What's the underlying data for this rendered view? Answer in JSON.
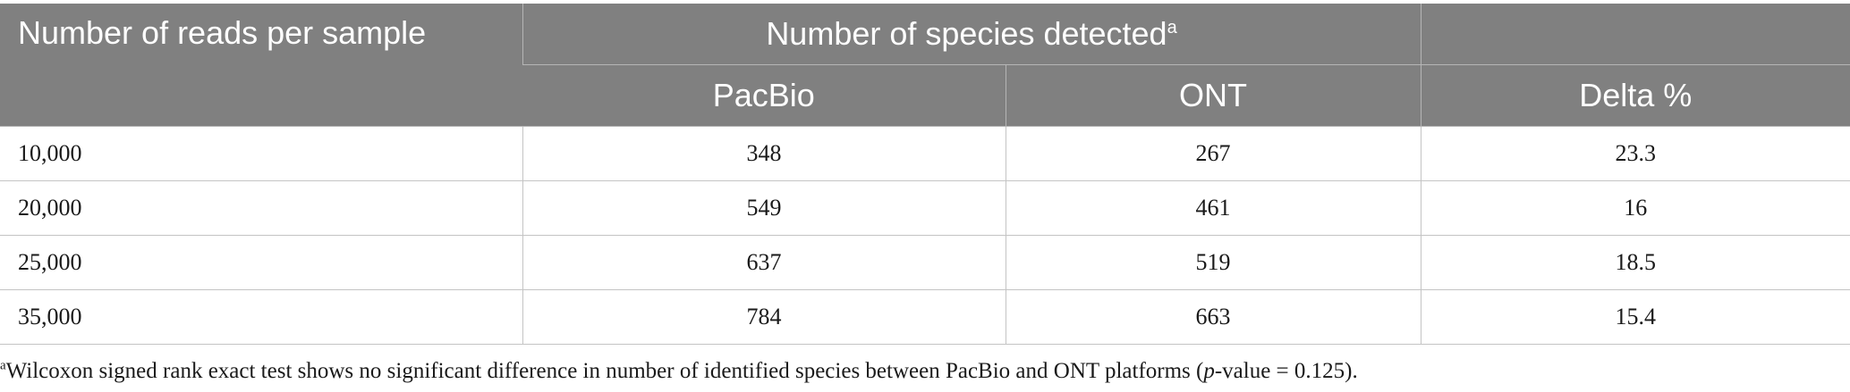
{
  "table": {
    "header": {
      "row_label": "Number of reads per sample",
      "group_label": "Number of species detected",
      "group_footnote_marker": "a",
      "columns": [
        "PacBio",
        "ONT",
        "Delta %"
      ]
    },
    "rows": [
      {
        "reads": "10,000",
        "pacbio": "348",
        "ont": "267",
        "delta": "23.3"
      },
      {
        "reads": "20,000",
        "pacbio": "549",
        "ont": "461",
        "delta": "16"
      },
      {
        "reads": "25,000",
        "pacbio": "637",
        "ont": "519",
        "delta": "18.5"
      },
      {
        "reads": "35,000",
        "pacbio": "784",
        "ont": "663",
        "delta": "15.4"
      }
    ]
  },
  "footnote": {
    "marker": "a",
    "text_before": "Wilcoxon signed rank exact test shows no significant difference in number of identified species between PacBio and ONT platforms (",
    "italic": "p",
    "text_after": "-value = 0.125)."
  }
}
